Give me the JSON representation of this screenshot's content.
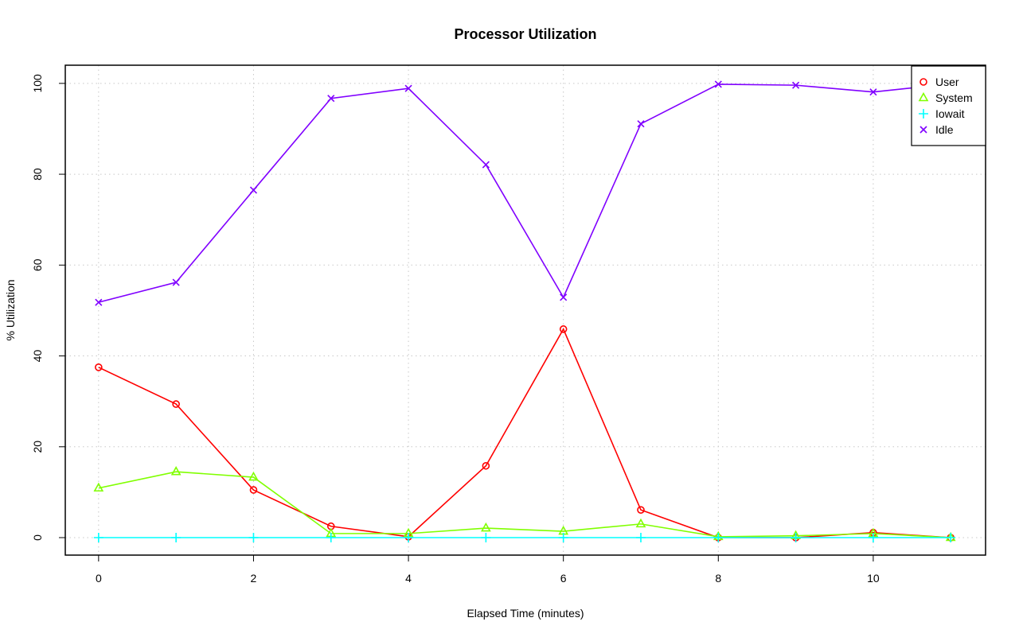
{
  "chart_data": {
    "type": "line",
    "title": "Processor Utilization",
    "xlabel": "Elapsed Time (minutes)",
    "ylabel": "% Utilization",
    "xlim": [
      -0.43,
      11.45
    ],
    "ylim": [
      -3.85,
      104
    ],
    "x_ticks": [
      0,
      2,
      4,
      6,
      8,
      10
    ],
    "y_ticks": [
      0,
      20,
      40,
      60,
      80,
      100
    ],
    "grid": true,
    "legend_position": "top-right",
    "x": [
      0,
      1,
      2,
      3,
      4,
      5,
      6,
      7,
      8,
      9,
      10,
      11
    ],
    "series": [
      {
        "name": "User",
        "color": "#ff0000",
        "marker": "circle",
        "values": [
          37.5,
          29.4,
          10.5,
          2.5,
          0.2,
          15.8,
          45.9,
          6.1,
          0.0,
          0.0,
          1.1,
          0.0
        ]
      },
      {
        "name": "System",
        "color": "#80ff00",
        "marker": "triangle",
        "values": [
          10.9,
          14.5,
          13.3,
          0.9,
          0.9,
          2.1,
          1.4,
          3.0,
          0.2,
          0.4,
          0.9,
          0.0
        ]
      },
      {
        "name": "Iowait",
        "color": "#00ffff",
        "marker": "plus",
        "values": [
          0,
          0,
          0,
          0,
          0,
          0,
          0,
          0,
          0,
          0,
          0,
          0
        ]
      },
      {
        "name": "Idle",
        "color": "#8000ff",
        "marker": "cross",
        "values": [
          51.8,
          56.2,
          76.5,
          96.7,
          98.9,
          82.1,
          52.9,
          91.1,
          99.8,
          99.6,
          98.1,
          99.9
        ]
      }
    ]
  }
}
